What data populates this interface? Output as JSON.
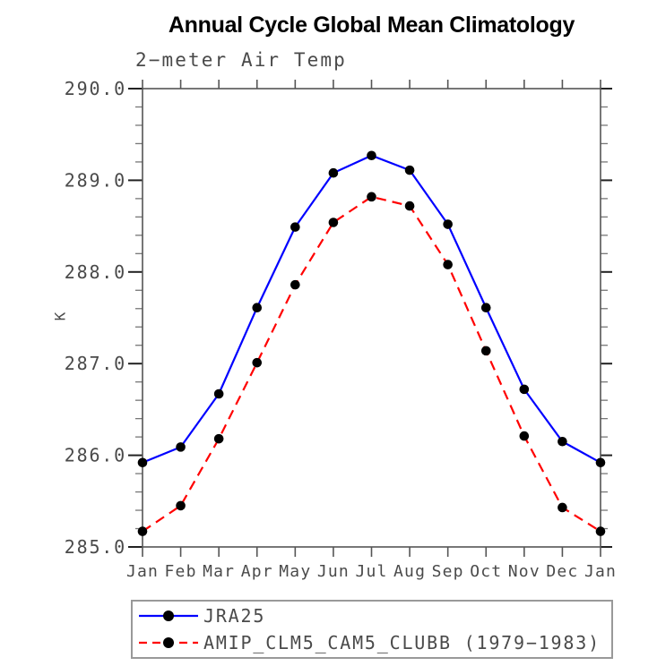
{
  "chart_data": {
    "type": "line",
    "title": "Annual Cycle Global Mean Climatology",
    "subtitle": "2−meter Air Temp",
    "ylabel": "K",
    "xlabel": "",
    "categories": [
      "Jan",
      "Feb",
      "Mar",
      "Apr",
      "May",
      "Jun",
      "Jul",
      "Aug",
      "Sep",
      "Oct",
      "Nov",
      "Dec",
      "Jan"
    ],
    "series": [
      {
        "name": "JRA25",
        "color": "#0000ff",
        "line_style": "solid",
        "values": [
          285.92,
          286.09,
          286.67,
          287.61,
          288.49,
          289.08,
          289.27,
          289.11,
          288.52,
          287.61,
          286.72,
          286.15,
          285.92
        ]
      },
      {
        "name": "AMIP_CLM5_CAM5_CLUBB (1979−1983)",
        "color": "#ff0000",
        "line_style": "dashed",
        "values": [
          285.17,
          285.45,
          286.18,
          287.01,
          287.86,
          288.54,
          288.82,
          288.72,
          288.08,
          287.14,
          286.21,
          285.43,
          285.17
        ]
      }
    ],
    "marker": {
      "shape": "circle",
      "color": "#000000"
    },
    "ylim": [
      285.0,
      290.0
    ],
    "ytick_labels": [
      "290.0",
      "289.0",
      "288.0",
      "287.0",
      "286.0",
      "285.0"
    ],
    "yminor_step": 0.2,
    "grid": false,
    "legend_position": "boxed-bottom-left",
    "frame_color": "#555555"
  },
  "legend": {
    "entries": [
      {
        "label": "JRA25"
      },
      {
        "label": "AMIP_CLM5_CAM5_CLUBB (1979−1983)"
      }
    ]
  }
}
